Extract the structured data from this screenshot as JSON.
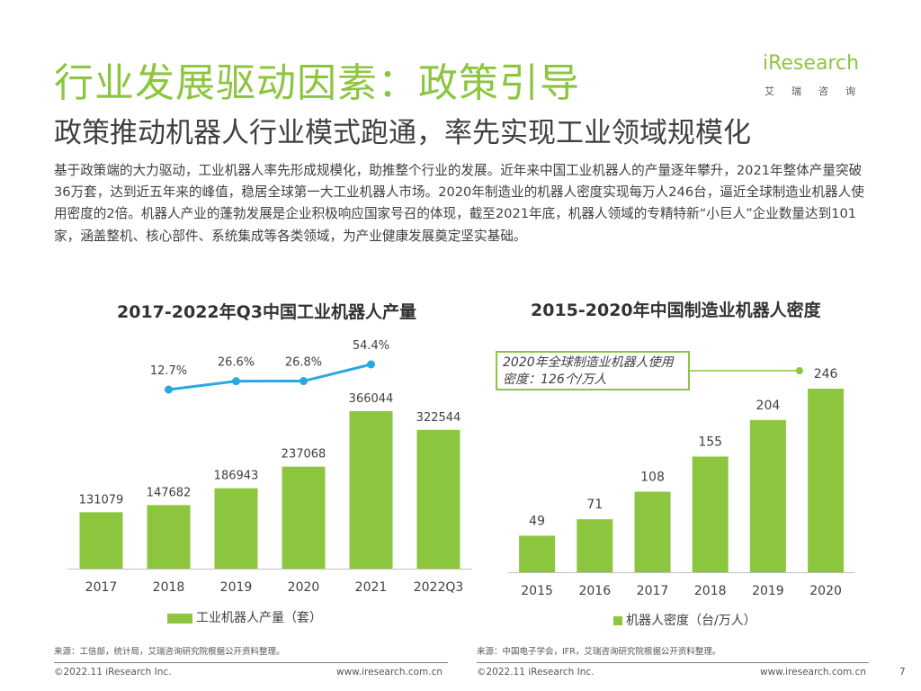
{
  "header": {
    "title": "行业发展驱动因素：政策引导",
    "subtitle": "政策推动机器人行业模式跑通，率先实现工业领域规模化",
    "logo_word": "iResearch",
    "logo_sub": "艾瑞咨询"
  },
  "body": {
    "paragraph": "基于政策端的大力驱动，工业机器人率先形成规模化，助推整个行业的发展。近年来中国工业机器人的产量逐年攀升，2021年整体产量突破36万套，达到近五年来的峰值，稳居全球第一大工业机器人市场。2020年制造业的机器人密度实现每万人246台，逼近全球制造业机器人使用密度的2倍。机器人产业的蓬勃发展是企业积极响应国家号召的体现，截至2021年底，机器人领域的专精特新“小巨人”企业数量达到101家，涵盖整机、核心部件、系统集成等各类领域，为产业健康发展奠定坚实基础。"
  },
  "chart_data": [
    {
      "type": "bar",
      "title": "2017-2022年Q3中国工业机器人产量",
      "categories": [
        "2017",
        "2018",
        "2019",
        "2020",
        "2021",
        "2022Q3"
      ],
      "series": [
        {
          "name": "工业机器人产量（套）",
          "values": [
            131079,
            147682,
            186943,
            237068,
            366044,
            322544
          ]
        }
      ],
      "growth_line": {
        "categories": [
          "2018",
          "2019",
          "2020",
          "2021"
        ],
        "labels": [
          "12.7%",
          "26.6%",
          "26.8%",
          "54.4%"
        ],
        "values": [
          12.7,
          26.6,
          26.8,
          54.4
        ]
      },
      "bar_color": "#8cc63f",
      "line_color": "#29a8e0"
    },
    {
      "type": "bar",
      "title": "2015-2020年中国制造业机器人密度",
      "categories": [
        "2015",
        "2016",
        "2017",
        "2018",
        "2019",
        "2020"
      ],
      "series": [
        {
          "name": "机器人密度（台/万人）",
          "values": [
            49,
            71,
            108,
            155,
            204,
            246
          ]
        }
      ],
      "annotation": "2020年全球制造业机器人使用密度：126个/万人",
      "bar_color": "#8cc63f"
    }
  ],
  "sources": {
    "left": "来源：工信部，统计局，艾瑞咨询研究院根据公开资料整理。",
    "right": "来源：中国电子学会，IFR，艾瑞咨询研究院根据公开资料整理。"
  },
  "footer": {
    "copyright": "©2022.11 iResearch Inc.",
    "url": "www.iresearch.com.cn",
    "page": "7"
  }
}
